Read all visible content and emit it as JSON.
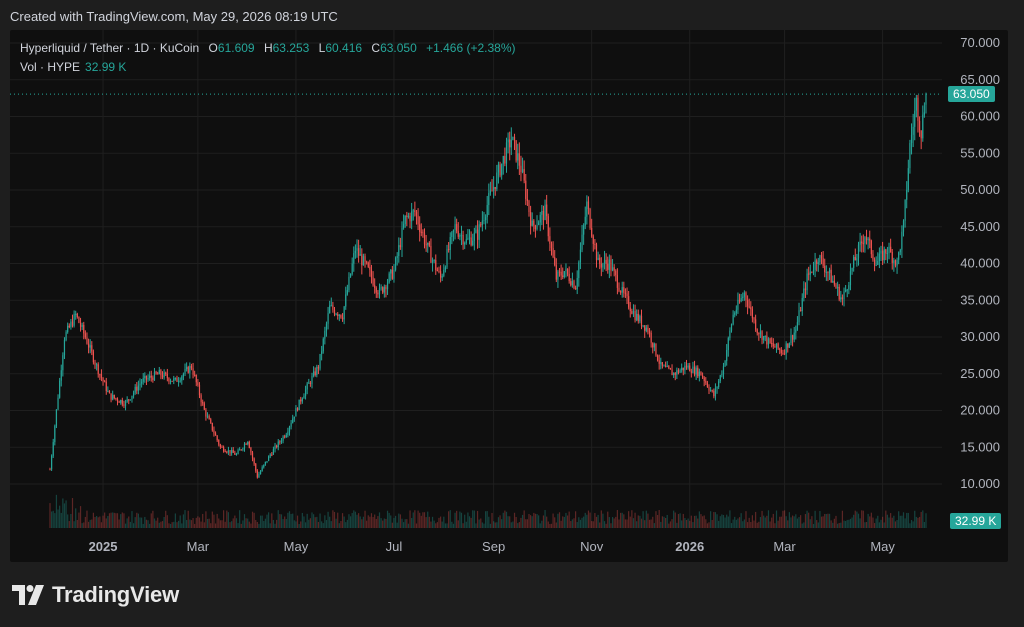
{
  "header": {
    "created_text": "Created with TradingView.com, May 29, 2026 08:19 UTC"
  },
  "legend": {
    "symbol": "Hyperliquid / Tether · 1D · KuCoin",
    "open_label": "O",
    "open": "61.609",
    "high_label": "H",
    "high": "63.253",
    "low_label": "L",
    "low": "60.416",
    "close_label": "C",
    "close": "63.050",
    "change": "+1.466 (+2.38%)",
    "volume_label": "Vol · HYPE",
    "volume": "32.99 K"
  },
  "price_tag": "63.050",
  "volume_tag": "32.99 K",
  "footer": {
    "brand": "TradingView"
  },
  "colors": {
    "up": "#26a69a",
    "down": "#ef5350",
    "grid": "#1f1f1f",
    "axis_text": "#b2b5be"
  },
  "chart_data": {
    "type": "candlestick",
    "symbol": "Hyperliquid / Tether",
    "interval": "1D",
    "exchange": "KuCoin",
    "y_axis_ticks": [
      "70.000",
      "65.000",
      "60.000",
      "55.000",
      "50.000",
      "45.000",
      "40.000",
      "35.000",
      "30.000",
      "25.000",
      "20.000",
      "15.000",
      "10.000"
    ],
    "y_range": [
      10,
      70
    ],
    "x_axis_ticks": [
      "2025",
      "Mar",
      "May",
      "Jul",
      "Sep",
      "Nov",
      "2026",
      "Mar",
      "May"
    ],
    "last_close": 63.05,
    "last_ohlc": {
      "open": 61.609,
      "high": 63.253,
      "low": 60.416,
      "close": 63.05
    },
    "approx_price_path": [
      {
        "date": "2024-11-29",
        "close": 12.0
      },
      {
        "date": "2024-12-03",
        "close": 20.0
      },
      {
        "date": "2024-12-08",
        "close": 30.0
      },
      {
        "date": "2024-12-15",
        "close": 33.0
      },
      {
        "date": "2024-12-21",
        "close": 30.0
      },
      {
        "date": "2024-12-28",
        "close": 26.0
      },
      {
        "date": "2025-01-05",
        "close": 22.0
      },
      {
        "date": "2025-01-15",
        "close": 21.0
      },
      {
        "date": "2025-01-25",
        "close": 24.0
      },
      {
        "date": "2025-02-05",
        "close": 25.0
      },
      {
        "date": "2025-02-15",
        "close": 24.0
      },
      {
        "date": "2025-02-25",
        "close": 26.0
      },
      {
        "date": "2025-03-05",
        "close": 20.0
      },
      {
        "date": "2025-03-15",
        "close": 15.0
      },
      {
        "date": "2025-03-25",
        "close": 14.0
      },
      {
        "date": "2025-04-01",
        "close": 16.0
      },
      {
        "date": "2025-04-07",
        "close": 11.0
      },
      {
        "date": "2025-04-15",
        "close": 14.0
      },
      {
        "date": "2025-04-25",
        "close": 17.0
      },
      {
        "date": "2025-05-05",
        "close": 22.0
      },
      {
        "date": "2025-05-15",
        "close": 26.0
      },
      {
        "date": "2025-05-22",
        "close": 34.0
      },
      {
        "date": "2025-05-30",
        "close": 33.0
      },
      {
        "date": "2025-06-07",
        "close": 42.0
      },
      {
        "date": "2025-06-15",
        "close": 39.0
      },
      {
        "date": "2025-06-22",
        "close": 36.0
      },
      {
        "date": "2025-07-01",
        "close": 39.0
      },
      {
        "date": "2025-07-08",
        "close": 46.0
      },
      {
        "date": "2025-07-14",
        "close": 47.0
      },
      {
        "date": "2025-07-22",
        "close": 42.0
      },
      {
        "date": "2025-07-30",
        "close": 38.0
      },
      {
        "date": "2025-08-08",
        "close": 45.0
      },
      {
        "date": "2025-08-15",
        "close": 43.0
      },
      {
        "date": "2025-08-22",
        "close": 44.0
      },
      {
        "date": "2025-08-28",
        "close": 48.0
      },
      {
        "date": "2025-09-05",
        "close": 53.0
      },
      {
        "date": "2025-09-12",
        "close": 57.0
      },
      {
        "date": "2025-09-18",
        "close": 53.0
      },
      {
        "date": "2025-09-25",
        "close": 45.0
      },
      {
        "date": "2025-10-03",
        "close": 47.0
      },
      {
        "date": "2025-10-10",
        "close": 38.0
      },
      {
        "date": "2025-10-15",
        "close": 39.0
      },
      {
        "date": "2025-10-22",
        "close": 37.0
      },
      {
        "date": "2025-10-29",
        "close": 48.0
      },
      {
        "date": "2025-11-05",
        "close": 40.0
      },
      {
        "date": "2025-11-12",
        "close": 40.0
      },
      {
        "date": "2025-11-20",
        "close": 36.0
      },
      {
        "date": "2025-11-28",
        "close": 33.0
      },
      {
        "date": "2025-12-06",
        "close": 31.0
      },
      {
        "date": "2025-12-14",
        "close": 26.0
      },
      {
        "date": "2025-12-22",
        "close": 25.0
      },
      {
        "date": "2025-12-30",
        "close": 26.0
      },
      {
        "date": "2026-01-08",
        "close": 25.0
      },
      {
        "date": "2026-01-16",
        "close": 22.0
      },
      {
        "date": "2026-01-22",
        "close": 26.0
      },
      {
        "date": "2026-01-28",
        "close": 33.0
      },
      {
        "date": "2026-02-04",
        "close": 36.0
      },
      {
        "date": "2026-02-12",
        "close": 31.0
      },
      {
        "date": "2026-02-20",
        "close": 29.0
      },
      {
        "date": "2026-02-28",
        "close": 28.0
      },
      {
        "date": "2026-03-08",
        "close": 31.0
      },
      {
        "date": "2026-03-15",
        "close": 38.0
      },
      {
        "date": "2026-03-22",
        "close": 41.0
      },
      {
        "date": "2026-03-30",
        "close": 38.0
      },
      {
        "date": "2026-04-06",
        "close": 35.0
      },
      {
        "date": "2026-04-13",
        "close": 40.0
      },
      {
        "date": "2026-04-20",
        "close": 44.0
      },
      {
        "date": "2026-04-27",
        "close": 40.0
      },
      {
        "date": "2026-05-04",
        "close": 42.0
      },
      {
        "date": "2026-05-10",
        "close": 40.0
      },
      {
        "date": "2026-05-14",
        "close": 45.0
      },
      {
        "date": "2026-05-18",
        "close": 56.0
      },
      {
        "date": "2026-05-22",
        "close": 62.0
      },
      {
        "date": "2026-05-25",
        "close": 58.0
      },
      {
        "date": "2026-05-28",
        "close": 63.05
      }
    ]
  }
}
